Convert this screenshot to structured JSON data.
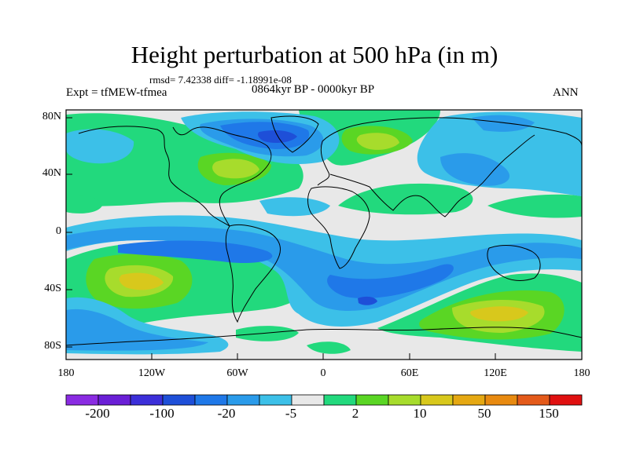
{
  "title": "Height perturbation at 500 hPa (in m)",
  "rmsd_line": "rmsd= 7.42338 diff= -1.18991e-08",
  "time_range": "0864kyr BP - 0000kyr BP",
  "experiment": "Expt = tfMEW-tfmea",
  "season": "ANN",
  "lat_ticks": [
    "80N",
    "40N",
    "0",
    "40S",
    "80S"
  ],
  "lon_ticks": [
    "180",
    "120W",
    "60W",
    "0",
    "60E",
    "120E",
    "180"
  ],
  "colorbar": {
    "colors": [
      "#8a2be2",
      "#6a1fd6",
      "#3c2fd9",
      "#1e4fd8",
      "#1f78e8",
      "#2a9bea",
      "#3cc0e8",
      "#e8e8e8",
      "#22d97d",
      "#5ad624",
      "#a7dc2c",
      "#d8c81c",
      "#e5a812",
      "#e88a10",
      "#e45a1a",
      "#e01010"
    ],
    "labels": [
      "-200",
      "-100",
      "-20",
      "-5",
      "2",
      "10",
      "50",
      "150"
    ]
  },
  "field_colors": {
    "background": "#e8e8e8",
    "neg_light": "#3cc0e8",
    "neg_mid": "#2a9bea",
    "neg_dark": "#1f78e8",
    "neg_deep": "#1e4fd8",
    "pos_light": "#22d97d",
    "pos_mid": "#5ad624",
    "pos_strong": "#a7dc2c",
    "pos_peak": "#d8c81c",
    "pos_max": "#e5a812"
  }
}
